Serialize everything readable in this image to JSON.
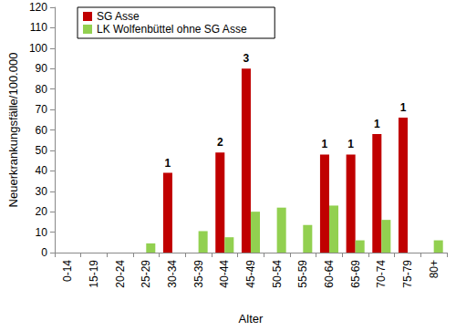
{
  "chart_data": {
    "type": "bar",
    "x_label": "Alter",
    "y_label": "Neuerkrankungsfälle/100.000",
    "categories": [
      "0-14",
      "15-19",
      "20-24",
      "25-29",
      "30-34",
      "35-39",
      "40-44",
      "45-49",
      "50-54",
      "55-59",
      "60-64",
      "65-69",
      "70-74",
      "75-79",
      "80+"
    ],
    "series": [
      {
        "name": "SG Asse",
        "color": "#c00000",
        "values": [
          null,
          null,
          null,
          null,
          39,
          null,
          49,
          90,
          null,
          null,
          48,
          48,
          58,
          66,
          null
        ]
      },
      {
        "name": "LK Wolfenbüttel ohne SG Asse",
        "color": "#92d050",
        "values": [
          null,
          null,
          null,
          4.5,
          null,
          10.5,
          7.5,
          20,
          22,
          13.5,
          23,
          6,
          16,
          null,
          6
        ]
      }
    ],
    "annotations": [
      {
        "x": "30-34",
        "series": "SG Asse",
        "text": "1"
      },
      {
        "x": "40-44",
        "series": "SG Asse",
        "text": "2"
      },
      {
        "x": "45-49",
        "series": "SG Asse",
        "text": "3"
      },
      {
        "x": "60-64",
        "series": "SG Asse",
        "text": "1"
      },
      {
        "x": "65-69",
        "series": "SG Asse",
        "text": "1"
      },
      {
        "x": "70-74",
        "series": "SG Asse",
        "text": "1"
      },
      {
        "x": "75-79",
        "series": "SG Asse",
        "text": "1"
      }
    ],
    "ylim": [
      0,
      120
    ],
    "yticks": [
      0,
      10,
      20,
      30,
      40,
      50,
      60,
      70,
      80,
      90,
      100,
      110,
      120
    ],
    "grid": false,
    "legend": "upper left"
  }
}
